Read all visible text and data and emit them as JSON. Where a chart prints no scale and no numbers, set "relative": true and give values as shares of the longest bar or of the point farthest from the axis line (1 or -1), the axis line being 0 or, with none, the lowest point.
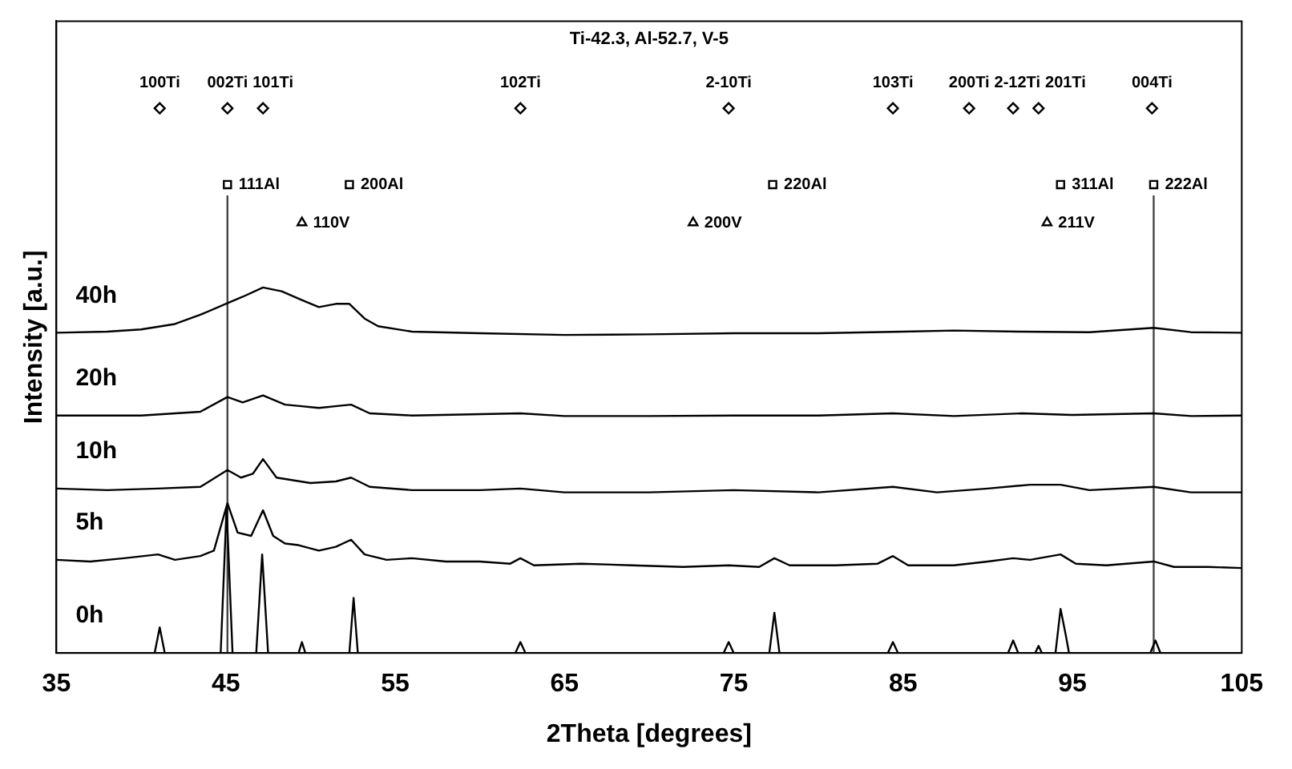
{
  "chart_data": {
    "type": "line",
    "title": "Ti-42.3, Al-52.7, V-5",
    "xlabel": "2Theta [degrees]",
    "ylabel": "Intensity [a.u.]",
    "relative": true,
    "xlim": [
      35,
      105
    ],
    "xticks": [
      35,
      45,
      55,
      65,
      75,
      85,
      95,
      105
    ],
    "grid": false,
    "legend": false,
    "marker": "none",
    "line_style": "solid",
    "series": [
      {
        "name": "0h",
        "color": "#000000",
        "x": [
          35,
          40.8,
          41.1,
          41.4,
          44.7,
          45.05,
          45.4,
          46.8,
          47.15,
          47.5,
          49.3,
          49.5,
          49.7,
          52.3,
          52.55,
          52.8,
          62.1,
          62.4,
          62.7,
          74.4,
          74.7,
          75.0,
          77.1,
          77.4,
          77.7,
          84.1,
          84.4,
          84.7,
          91.2,
          91.5,
          91.8,
          92.8,
          93.0,
          93.2,
          94.0,
          94.3,
          94.6,
          94.8,
          99.6,
          99.9,
          100.2,
          105
        ],
        "values": [
          0,
          0,
          0.047,
          0,
          0,
          0.268,
          0,
          0,
          0.181,
          0,
          0,
          0.02,
          0,
          0,
          0.101,
          0,
          0,
          0.02,
          0,
          0,
          0.02,
          0,
          0,
          0.074,
          0,
          0,
          0.02,
          0,
          0,
          0.023,
          0,
          0,
          0.013,
          0,
          0,
          0.081,
          0.034,
          0,
          0,
          0.023,
          0,
          0
        ]
      },
      {
        "name": "5h",
        "color": "#000000",
        "x": [
          35,
          37,
          39,
          41,
          42,
          43.5,
          44.3,
          45.1,
          45.7,
          46.5,
          47.2,
          47.8,
          48.5,
          49.3,
          50.5,
          51.5,
          52.4,
          53.2,
          54.5,
          56,
          58,
          60,
          61.8,
          62.4,
          63.2,
          66,
          69,
          72,
          74.7,
          76.5,
          77.4,
          78.3,
          81,
          83.5,
          84.4,
          85.3,
          88,
          90,
          91.5,
          92.5,
          94.3,
          95.2,
          97,
          99.8,
          101,
          103,
          105
        ],
        "values": [
          0.171,
          0.168,
          0.174,
          0.181,
          0.171,
          0.178,
          0.188,
          0.275,
          0.221,
          0.215,
          0.262,
          0.215,
          0.201,
          0.198,
          0.188,
          0.195,
          0.208,
          0.181,
          0.171,
          0.174,
          0.168,
          0.168,
          0.164,
          0.174,
          0.161,
          0.164,
          0.161,
          0.158,
          0.161,
          0.158,
          0.174,
          0.161,
          0.161,
          0.164,
          0.178,
          0.161,
          0.161,
          0.168,
          0.174,
          0.171,
          0.181,
          0.164,
          0.161,
          0.168,
          0.158,
          0.158,
          0.156
        ]
      },
      {
        "name": "10h",
        "color": "#000000",
        "x": [
          35,
          38,
          41,
          43.5,
          45.1,
          45.9,
          46.6,
          47.2,
          48,
          50,
          51.5,
          52.4,
          53.5,
          56,
          60,
          62.4,
          65,
          70,
          75,
          80,
          84.4,
          87,
          90,
          92.5,
          94.3,
          96,
          99.8,
          102,
          105
        ],
        "values": [
          0.302,
          0.299,
          0.302,
          0.305,
          0.336,
          0.322,
          0.329,
          0.356,
          0.322,
          0.312,
          0.315,
          0.322,
          0.305,
          0.299,
          0.299,
          0.302,
          0.295,
          0.295,
          0.299,
          0.295,
          0.305,
          0.295,
          0.302,
          0.309,
          0.309,
          0.299,
          0.305,
          0.295,
          0.295
        ]
      },
      {
        "name": "20h",
        "color": "#000000",
        "x": [
          35,
          40,
          43.5,
          45.1,
          46,
          47.2,
          48.5,
          50.5,
          52.4,
          53.5,
          56,
          62.4,
          65,
          70,
          75,
          80,
          84.4,
          88,
          92,
          95,
          99.8,
          102,
          105
        ],
        "values": [
          0.436,
          0.436,
          0.443,
          0.47,
          0.46,
          0.473,
          0.456,
          0.45,
          0.456,
          0.44,
          0.436,
          0.44,
          0.435,
          0.435,
          0.436,
          0.436,
          0.44,
          0.435,
          0.44,
          0.437,
          0.44,
          0.435,
          0.436
        ]
      },
      {
        "name": "40h",
        "color": "#000000",
        "x": [
          35,
          38,
          40,
          42,
          43.5,
          45,
          46,
          47.2,
          48.3,
          49.5,
          50.5,
          51.5,
          52.3,
          53.2,
          54,
          56,
          60,
          65,
          70,
          75,
          80,
          85,
          88,
          92,
          96,
          99.8,
          102,
          105
        ],
        "values": [
          0.588,
          0.59,
          0.594,
          0.604,
          0.621,
          0.641,
          0.654,
          0.671,
          0.664,
          0.648,
          0.635,
          0.641,
          0.641,
          0.614,
          0.6,
          0.59,
          0.587,
          0.584,
          0.585,
          0.587,
          0.587,
          0.59,
          0.592,
          0.59,
          0.589,
          0.597,
          0.589,
          0.588
        ]
      },
      {
        "type": "scatter",
        "marker": "diamond",
        "color": "#000000",
        "x": [
          41.1,
          45.1,
          47.2,
          62.4,
          74.7,
          84.4,
          88.9,
          91.5,
          93.0,
          99.7
        ],
        "values": [
          1,
          1,
          1,
          1,
          1,
          1,
          1,
          1,
          1,
          1
        ]
      },
      {
        "type": "scatter",
        "marker": "square",
        "color": "#000000",
        "x": [
          45.1,
          52.3,
          77.3,
          94.3,
          99.8
        ],
        "values": [
          0.86,
          0.86,
          0.86,
          0.86,
          0.86
        ]
      },
      {
        "type": "scatter",
        "marker": "triangle",
        "color": "#000000",
        "x": [
          49.5,
          72.6,
          93.5
        ],
        "values": [
          0.79,
          0.79,
          0.79
        ]
      }
    ],
    "ref_lines": [
      {
        "axis": "x",
        "value": 45.1,
        "color": "#444444"
      },
      {
        "axis": "x",
        "value": 99.8,
        "color": "#444444"
      }
    ],
    "annotations": [
      {
        "text": "100Ti",
        "x": 41.1,
        "y": 1
      },
      {
        "text": "002Ti",
        "x": 45.1,
        "y": 1
      },
      {
        "text": "101Ti",
        "x": 47.2,
        "y": 1
      },
      {
        "text": "102Ti",
        "x": 62.4,
        "y": 1
      },
      {
        "text": "2-10Ti",
        "x": 74.7,
        "y": 1
      },
      {
        "text": "103Ti",
        "x": 84.4,
        "y": 1
      },
      {
        "text": "200Ti",
        "x": 88.9,
        "y": 1
      },
      {
        "text": "2-12Ti",
        "x": 91.5,
        "y": 1
      },
      {
        "text": "201Ti",
        "x": 93.0,
        "y": 1
      },
      {
        "text": "004Ti",
        "x": 99.7,
        "y": 1
      },
      {
        "text": "111Al",
        "x": 45.1,
        "y": 0.86
      },
      {
        "text": "200Al",
        "x": 52.3,
        "y": 0.86
      },
      {
        "text": "220Al",
        "x": 77.3,
        "y": 0.86
      },
      {
        "text": "311Al",
        "x": 94.3,
        "y": 0.86
      },
      {
        "text": "222Al",
        "x": 99.8,
        "y": 0.86
      },
      {
        "text": "110V",
        "x": 49.5,
        "y": 0.79
      },
      {
        "text": "200V",
        "x": 72.6,
        "y": 0.79
      },
      {
        "text": "211V",
        "x": 93.5,
        "y": 0.79
      }
    ]
  }
}
